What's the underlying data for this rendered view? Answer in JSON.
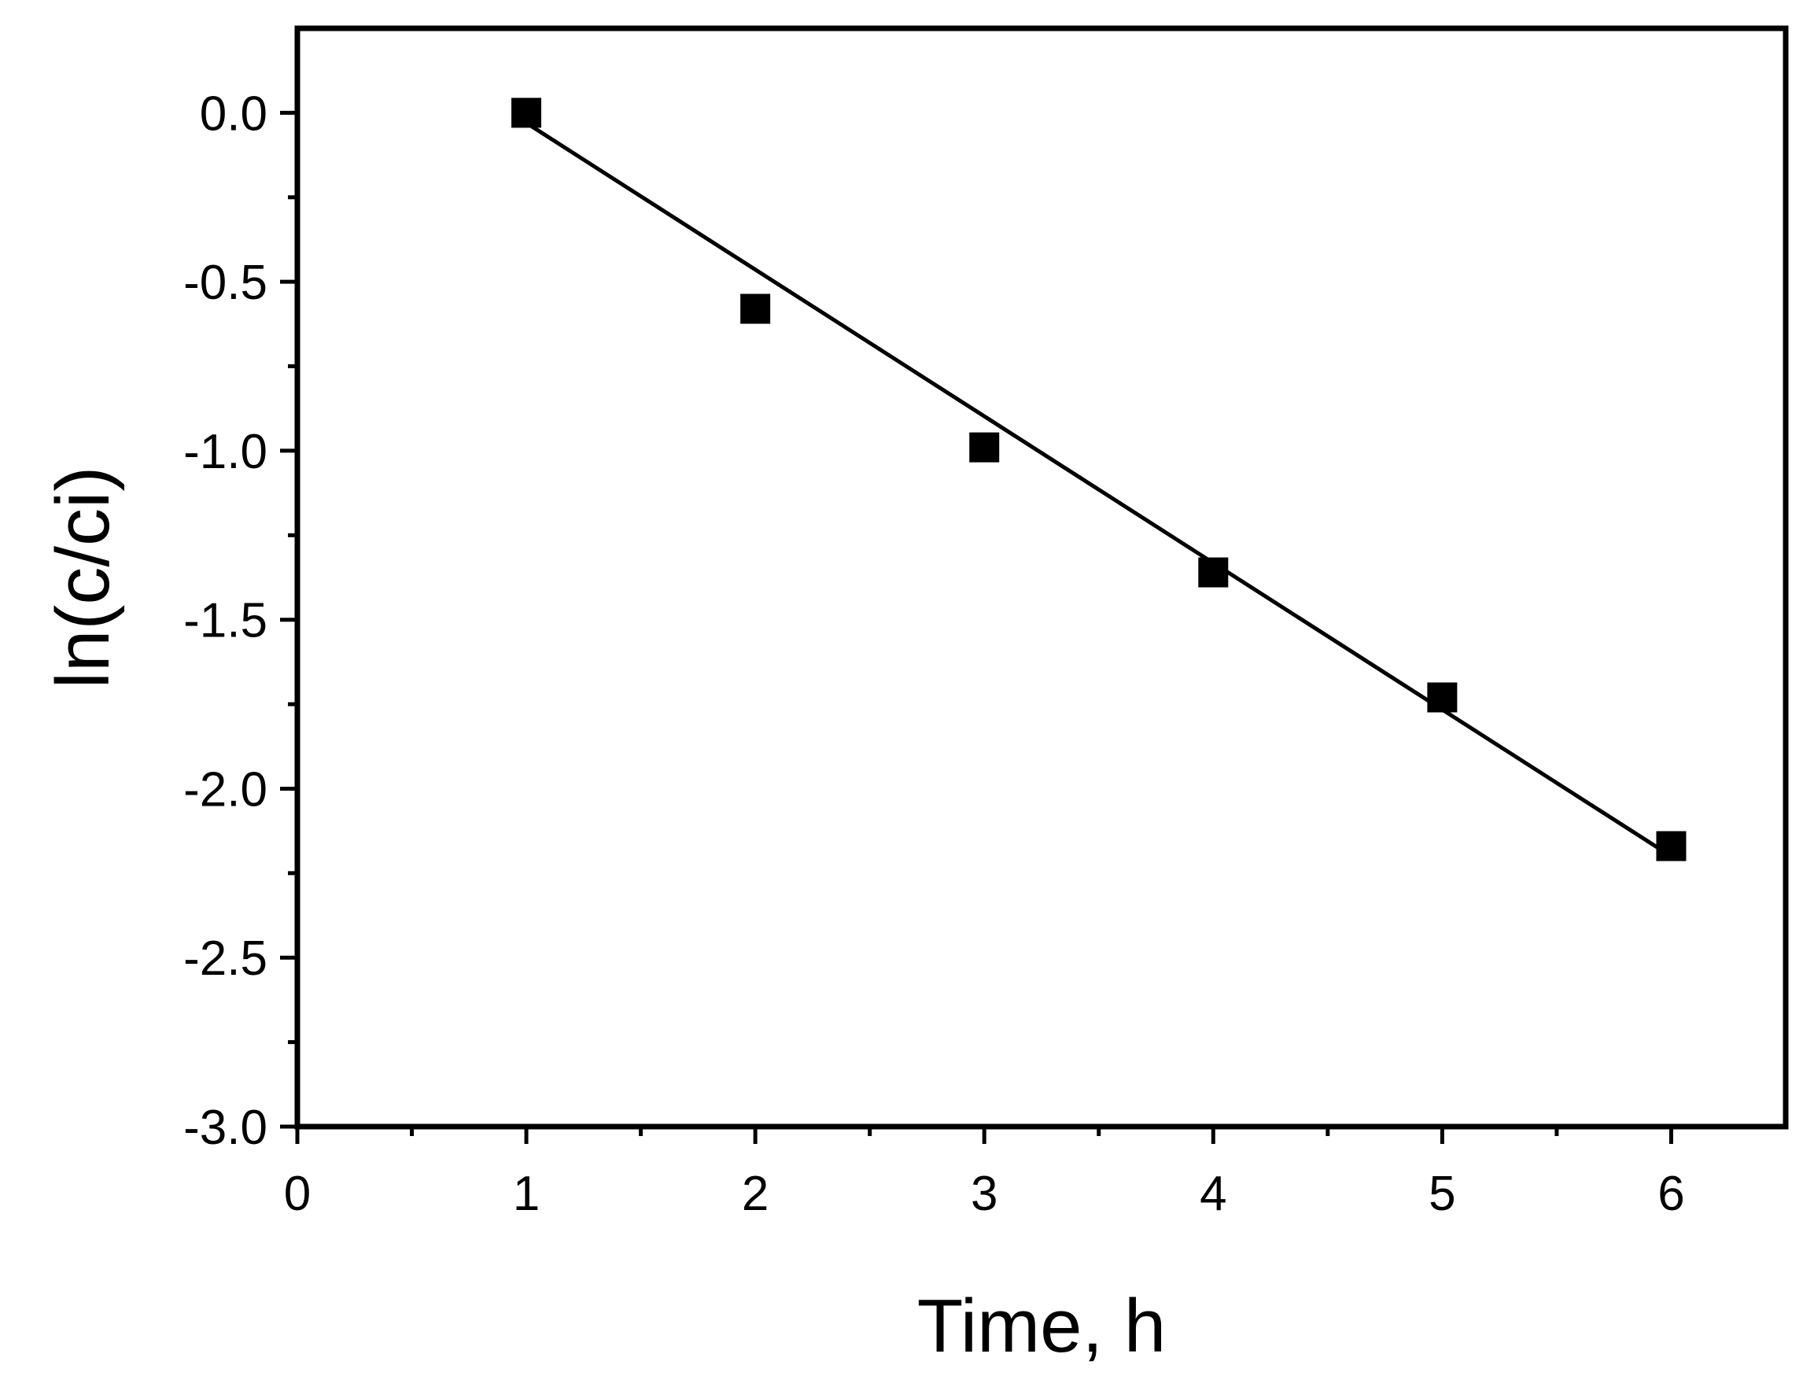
{
  "chart_data": {
    "type": "scatter",
    "title": "",
    "xlabel": "Time, h",
    "ylabel": "ln(c/ci)",
    "xlim": [
      0,
      6.5
    ],
    "ylim": [
      -3.0,
      0.25
    ],
    "x_ticks": [
      0,
      1,
      2,
      3,
      4,
      5,
      6
    ],
    "x_tick_labels": [
      "0",
      "1",
      "2",
      "3",
      "4",
      "5",
      "6"
    ],
    "x_minor_ticks": [
      0.5,
      1.5,
      2.5,
      3.5,
      4.5,
      5.5
    ],
    "y_ticks": [
      0.0,
      -0.5,
      -1.0,
      -1.5,
      -2.0,
      -2.5,
      -3.0
    ],
    "y_tick_labels": [
      "0.0",
      "-0.5",
      "-1.0",
      "-1.5",
      "-2.0",
      "-2.5",
      "-3.0"
    ],
    "y_minor_ticks": [
      -0.25,
      -0.75,
      -1.25,
      -1.75,
      -2.25,
      -2.75
    ],
    "grid": false,
    "legend": "none",
    "series": [
      {
        "kind": "points",
        "marker": "square",
        "color": "#000000",
        "x": [
          1,
          2,
          3,
          4,
          5,
          6
        ],
        "y": [
          0.0,
          -0.58,
          -0.99,
          -1.36,
          -1.73,
          -2.17
        ]
      },
      {
        "kind": "fit-line",
        "color": "#000000",
        "x": [
          1,
          6
        ],
        "y": [
          -0.03,
          -2.2
        ]
      }
    ]
  }
}
